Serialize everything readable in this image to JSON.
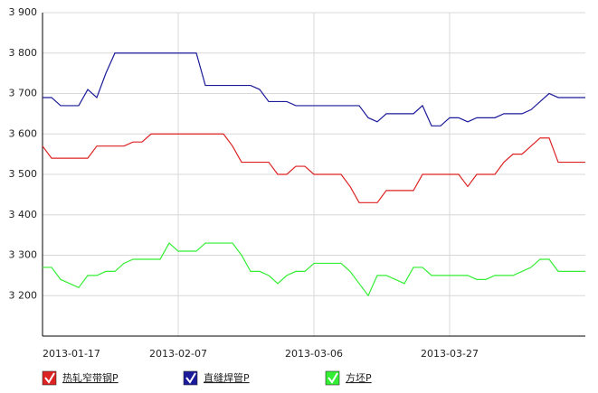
{
  "chart_data": {
    "type": "line",
    "categories": [
      "2013-01-17",
      null,
      null,
      null,
      null,
      null,
      null,
      null,
      null,
      null,
      null,
      null,
      null,
      null,
      null,
      "2013-02-07",
      null,
      null,
      null,
      null,
      null,
      null,
      null,
      null,
      null,
      null,
      null,
      null,
      null,
      null,
      "2013-03-06",
      null,
      null,
      null,
      null,
      null,
      null,
      null,
      null,
      null,
      null,
      null,
      null,
      null,
      null,
      "2013-03-27",
      null,
      null,
      null,
      null,
      null,
      null,
      null,
      null,
      null,
      null,
      null,
      null,
      null,
      null,
      null
    ],
    "series": [
      {
        "name": "热轧窄带钢P",
        "color": "#dd2222",
        "values": [
          3570,
          3540,
          3540,
          3540,
          3540,
          3540,
          3570,
          3570,
          3570,
          3570,
          3580,
          3580,
          3600,
          3600,
          3600,
          3600,
          3600,
          3600,
          3600,
          3600,
          3600,
          3570,
          3530,
          3530,
          3530,
          3530,
          3500,
          3500,
          3520,
          3520,
          3500,
          3500,
          3500,
          3500,
          3470,
          3430,
          3430,
          3430,
          3460,
          3460,
          3460,
          3460,
          3500,
          3500,
          3500,
          3500,
          3500,
          3470,
          3500,
          3500,
          3500,
          3530,
          3550,
          3550,
          3570,
          3590,
          3590,
          3530,
          3530,
          3530,
          3530
        ]
      },
      {
        "name": "直缝焊管P",
        "color": "#1a1a9a",
        "values": [
          3690,
          3690,
          3670,
          3670,
          3670,
          3710,
          3690,
          3750,
          3800,
          3800,
          3800,
          3800,
          3800,
          3800,
          3800,
          3800,
          3800,
          3800,
          3720,
          3720,
          3720,
          3720,
          3720,
          3720,
          3710,
          3680,
          3680,
          3680,
          3670,
          3670,
          3670,
          3670,
          3670,
          3670,
          3670,
          3670,
          3640,
          3630,
          3650,
          3650,
          3650,
          3650,
          3670,
          3620,
          3620,
          3640,
          3640,
          3630,
          3640,
          3640,
          3640,
          3650,
          3650,
          3650,
          3660,
          3680,
          3700,
          3690,
          3690,
          3690,
          3690
        ]
      },
      {
        "name": "方坯P",
        "color": "#33ee33",
        "values": [
          3270,
          3270,
          3240,
          3230,
          3220,
          3250,
          3250,
          3260,
          3260,
          3280,
          3290,
          3290,
          3290,
          3290,
          3330,
          3310,
          3310,
          3310,
          3330,
          3330,
          3330,
          3330,
          3300,
          3260,
          3260,
          3250,
          3230,
          3250,
          3260,
          3260,
          3280,
          3280,
          3280,
          3280,
          3260,
          3230,
          3200,
          3250,
          3250,
          3240,
          3230,
          3270,
          3270,
          3250,
          3250,
          3250,
          3250,
          3250,
          3240,
          3240,
          3250,
          3250,
          3250,
          3260,
          3270,
          3290,
          3290,
          3260,
          3260,
          3260,
          3260
        ]
      }
    ],
    "ylim": [
      3100,
      3900
    ],
    "yticks": [
      {
        "value": 3200,
        "label": "3 200"
      },
      {
        "value": 3300,
        "label": "3 300"
      },
      {
        "value": 3400,
        "label": "3 400"
      },
      {
        "value": 3500,
        "label": "3 500"
      },
      {
        "value": 3600,
        "label": "3 600"
      },
      {
        "value": 3700,
        "label": "3 700"
      },
      {
        "value": 3800,
        "label": "3 800"
      },
      {
        "value": 3900,
        "label": "3 900"
      }
    ],
    "grid": true
  }
}
